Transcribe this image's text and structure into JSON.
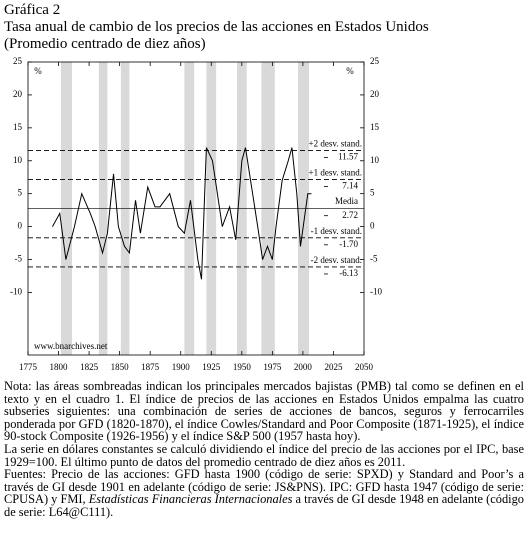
{
  "chart_data": {
    "type": "line",
    "title_lines": [
      "Gráfica 2",
      "Tasa anual de cambio de los precios de las acciones en Estados Unidos",
      "(Promedio centrado de diez años)"
    ],
    "y_unit": "%",
    "source_label": "www.bnarchives.net",
    "xlim": [
      1775,
      2050
    ],
    "xticks": [
      1775,
      1800,
      1825,
      1850,
      1875,
      1900,
      1925,
      1950,
      1975,
      2000,
      2025,
      2050
    ],
    "ylim": [
      -19.5,
      25
    ],
    "yticks": [
      -10,
      -5,
      0,
      5,
      10,
      15,
      20,
      25
    ],
    "color": "#000000",
    "shade_color": "#d9d9d9",
    "shaded_periods": [
      [
        1802,
        1811
      ],
      [
        1833,
        1840
      ],
      [
        1851,
        1858
      ],
      [
        1903,
        1911
      ],
      [
        1921,
        1929
      ],
      [
        1946,
        1954
      ],
      [
        1966,
        1977
      ],
      [
        1996,
        2005
      ]
    ],
    "x": [
      1795,
      1801,
      1806,
      1813,
      1819,
      1826,
      1830,
      1836,
      1840,
      1845,
      1849,
      1854,
      1858,
      1863,
      1867,
      1873,
      1879,
      1883,
      1891,
      1898,
      1903,
      1908,
      1914,
      1917,
      1921,
      1926,
      1930,
      1934,
      1940,
      1945,
      1950,
      1953,
      1958,
      1963,
      1967,
      1971,
      1975,
      1978,
      1983,
      1988,
      1991,
      1995,
      1998,
      2001,
      2004,
      2007
    ],
    "values": [
      0,
      2,
      -5,
      0,
      5,
      2,
      0,
      -4,
      -1,
      8,
      0,
      -3,
      -4,
      4,
      -1,
      6,
      3,
      3,
      5,
      0,
      -1,
      4,
      -5,
      -8,
      12,
      10,
      5,
      0,
      3,
      -2,
      10,
      12,
      6,
      0,
      -5,
      -3,
      -5,
      0,
      7,
      10,
      12,
      5,
      -3,
      1,
      5,
      5
    ],
    "mean_line": {
      "name": "Media",
      "value": 2.72
    },
    "reference_lines": [
      {
        "name": "+2 desv. stand.",
        "value": 11.57
      },
      {
        "name": "+1 desv. stand.",
        "value": 7.14
      },
      {
        "name": "-1 desv. stand.",
        "value": -1.7,
        "value_label": "-1.70"
      },
      {
        "name": "-2 desv. stand.",
        "value": -6.13
      }
    ],
    "notes": [
      [
        "Nota: las áreas sombreadas indican los principales mercados bajistas (PMB) tal como se definen en el texto y en el cuadro 1. El índice de precios de las acciones en Estados Unidos empalma las cuatro subseries siguientes: una combinación de series de acciones de bancos, seguros y ferrocarriles ponderada por GFD (1820-1870), el índice Cowles/Standard and Poor Composite (1871-1925), el índice 90-stock Composite (1926-1956) y el índice S&P 500 (1957 hasta hoy)."
      ],
      [
        "La serie en dólares constantes se calculó dividiendo el índice del precio de las acciones por el IPC, base 1929=100. El último punto de datos del promedio centrado de diez años es 2011."
      ],
      [
        "Fuentes: Precio de las acciones: GFD hasta 1900 (código de serie: SPXD) y Standard and Poor’s a través de GI desde 1901 en adelante (código de serie: JS&PNS). IPC: GFD hasta 1947 (código de serie: CPUSA) y FMI, ",
        "Estadísticas Financieras Internacionales",
        " a través de GI desde 1948 en adelante (código de serie: L64@C111)."
      ]
    ]
  }
}
